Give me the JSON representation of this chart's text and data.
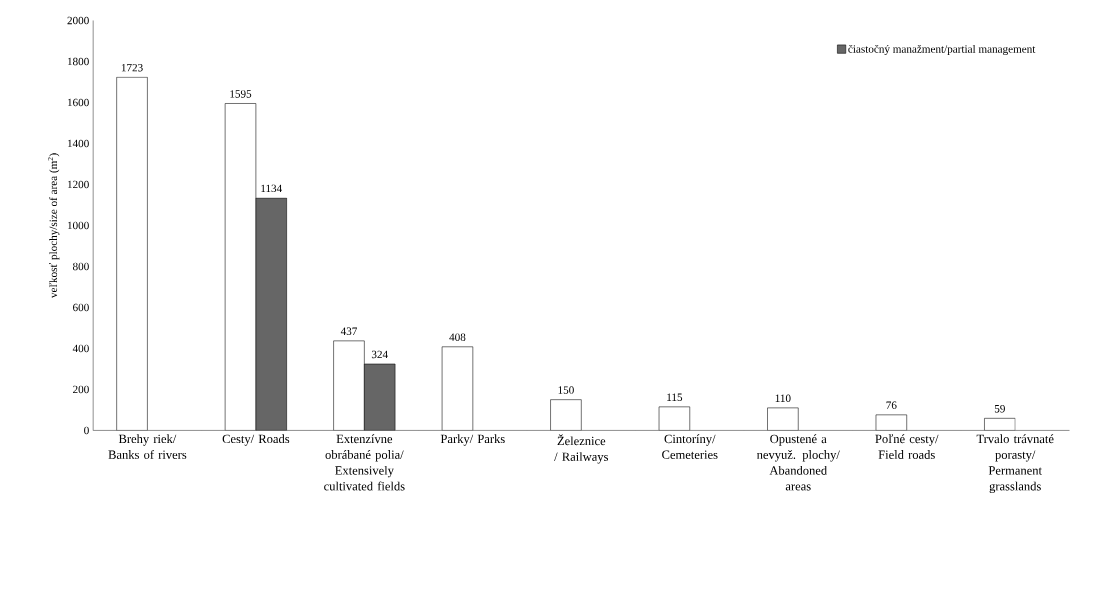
{
  "chart_data": {
    "type": "bar",
    "ylabel": "veľkosť plochy/size of area (m$^{2}$)",
    "categories": [
      "Brehy riek/ Banks of rivers",
      "Cesty/ Roads",
      "Extenzívne obrábané polia/ Extensively cultivated fields",
      "Parky/ Parks",
      "Železnice / Railways",
      "Cintoríny/ Cemeteries",
      "Opustené a nevyuž. plochy/ Abandoned areas",
      "Poľné cesty/ Field roads",
      "Trvalo trávnaté porasty/ Permanent grasslands"
    ],
    "series": [
      {
        "color": "#ffffff",
        "values": [
          1723,
          1595,
          437,
          408,
          150,
          115,
          110,
          76,
          59
        ]
      },
      {
        "name": "čiastočný manažment/partial management",
        "color": "#666666",
        "values": [
          null,
          1134,
          324,
          null,
          null,
          null,
          null,
          null,
          null
        ]
      }
    ],
    "ylim": [
      0,
      2000
    ],
    "yticks": [
      0,
      200,
      400,
      600,
      800,
      1000,
      1200,
      1400,
      1600,
      1800,
      2000
    ],
    "data_labels": true,
    "grid": false,
    "legend": "top right"
  }
}
